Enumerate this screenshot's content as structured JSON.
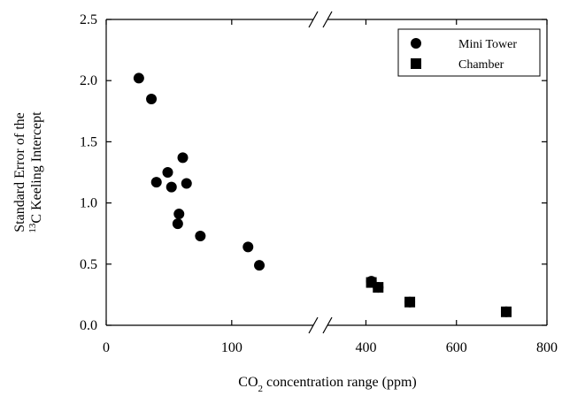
{
  "chart_data": {
    "type": "scatter",
    "ylabel_line1": "Standard Error of the",
    "ylabel_line2_sup": "13",
    "ylabel_line2_rest": "C Keeling Intercept",
    "xlabel_prefix": "CO",
    "xlabel_sub": "2",
    "xlabel_suffix": " concentration range (ppm)",
    "ylim": [
      0,
      2.5
    ],
    "y_ticks": [
      "0.0",
      "0.5",
      "1.0",
      "1.5",
      "2.0",
      "2.5"
    ],
    "x_axis_broken": true,
    "x_segment_left": {
      "xlim": [
        0,
        165
      ],
      "ticks": [
        0,
        100
      ]
    },
    "x_segment_right": {
      "xlim": [
        315,
        800
      ],
      "ticks": [
        400,
        600,
        800
      ]
    },
    "grid": false,
    "legend_position": "top-right",
    "series": [
      {
        "name": "Mini Tower",
        "marker": "circle",
        "points": [
          {
            "x": 26,
            "y": 2.02
          },
          {
            "x": 36,
            "y": 1.85
          },
          {
            "x": 40,
            "y": 1.17
          },
          {
            "x": 49,
            "y": 1.25
          },
          {
            "x": 52,
            "y": 1.13
          },
          {
            "x": 58,
            "y": 0.91
          },
          {
            "x": 57,
            "y": 0.83
          },
          {
            "x": 61,
            "y": 1.37
          },
          {
            "x": 64,
            "y": 1.16
          },
          {
            "x": 75,
            "y": 0.73
          },
          {
            "x": 113,
            "y": 0.64
          },
          {
            "x": 122,
            "y": 0.49
          },
          {
            "x": 412,
            "y": 0.36
          },
          {
            "x": 427,
            "y": 0.31
          },
          {
            "x": 497,
            "y": 0.19
          },
          {
            "x": 710,
            "y": 0.11
          }
        ]
      },
      {
        "name": "Chamber",
        "marker": "square",
        "points": [
          {
            "x": 412,
            "y": 0.35
          },
          {
            "x": 427,
            "y": 0.31
          },
          {
            "x": 497,
            "y": 0.19
          },
          {
            "x": 710,
            "y": 0.11
          }
        ]
      }
    ]
  }
}
